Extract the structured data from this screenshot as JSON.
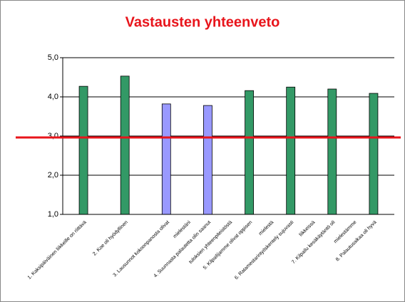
{
  "chart_data": {
    "type": "bar",
    "title": "Vastausten yhteenveto",
    "categories": [
      [
        "1. Kaksipäiväinen liikkeille on riittävä"
      ],
      [
        "2. Koe oli hyödyllinen"
      ],
      [
        "3. Lausunnot kokoonpanosta olivat",
        "mielestäni"
      ],
      [
        "4. Suunnasta palautetta olin saanut",
        "tuloksien yhteenpiteistöstä"
      ],
      [
        "5. Kilpailijamme olivat oppisen",
        "mielestä"
      ],
      [
        "6. Ratamestarintyöskentely sujuvasti",
        "liikkeissä"
      ],
      [
        "7. Kilpailu kesäkäytäntö oli",
        "mielestämme"
      ],
      [
        "8. Palautusaikaa oli hyvä"
      ]
    ],
    "values": [
      4.27,
      4.53,
      3.82,
      3.78,
      4.16,
      4.25,
      4.2,
      4.09
    ],
    "colors": [
      "#339966",
      "#339966",
      "#9999ff",
      "#9999ff",
      "#339966",
      "#339966",
      "#339966",
      "#339966"
    ],
    "ylim": [
      1,
      5
    ],
    "yticks": [
      {
        "value": 1,
        "label": "1,0"
      },
      {
        "value": 2,
        "label": "2,0"
      },
      {
        "value": 3,
        "label": "3,0"
      },
      {
        "value": 4,
        "label": "4,0"
      },
      {
        "value": 5,
        "label": "5,0"
      }
    ],
    "grid": true,
    "reference_line": {
      "value": 3,
      "color": "#e8141b"
    }
  }
}
